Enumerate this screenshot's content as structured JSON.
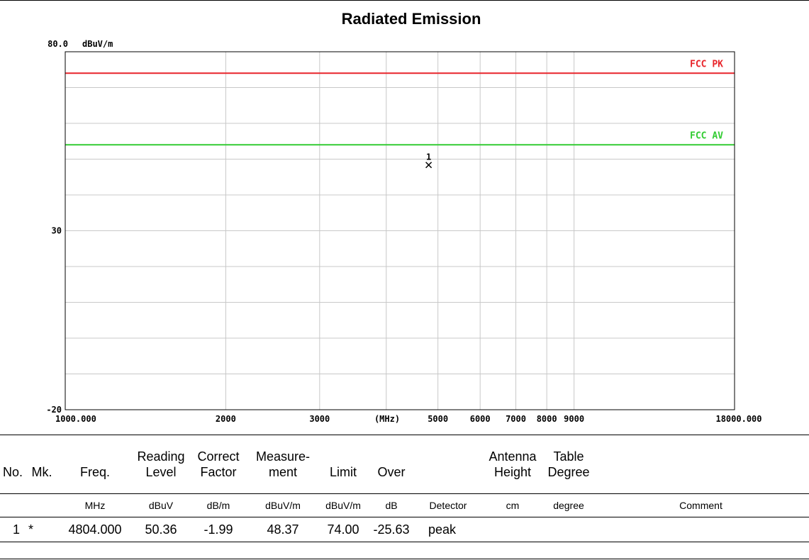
{
  "chart_data": {
    "type": "line",
    "title": "Radiated Emission",
    "ylabel": "dBuV/m",
    "xlabel": "(MHz)",
    "ylim": [
      -20,
      80
    ],
    "xlim": [
      1000,
      18000
    ],
    "xscale": "log",
    "y_ticks": [
      {
        "value": 80,
        "label": "80.0"
      },
      {
        "value": 30,
        "label": "30"
      },
      {
        "value": -20,
        "label": "-20"
      }
    ],
    "x_ticks": [
      {
        "value": 1000,
        "label": "1000.000"
      },
      {
        "value": 2000,
        "label": "2000"
      },
      {
        "value": 3000,
        "label": "3000"
      },
      {
        "value": 5000,
        "label": "5000"
      },
      {
        "value": 6000,
        "label": "6000"
      },
      {
        "value": 7000,
        "label": "7000"
      },
      {
        "value": 8000,
        "label": "8000"
      },
      {
        "value": 9000,
        "label": "9000"
      },
      {
        "value": 18000,
        "label": "18000.000"
      }
    ],
    "x_gridlines": [
      2000,
      3000,
      4000,
      5000,
      6000,
      7000,
      8000,
      9000
    ],
    "grid": true,
    "limits": [
      {
        "name": "FCC PK",
        "value": 74.0,
        "color": "#e8242a"
      },
      {
        "name": "FCC AV",
        "value": 54.0,
        "color": "#33cc33"
      }
    ],
    "markers": [
      {
        "label": "1",
        "x": 4804.0,
        "y": 48.37
      }
    ]
  },
  "table": {
    "headers": [
      {
        "key": "no",
        "label": "No."
      },
      {
        "key": "mk",
        "label": "Mk."
      },
      {
        "key": "freq",
        "label": "Freq."
      },
      {
        "key": "reading",
        "label": "Reading\nLevel"
      },
      {
        "key": "correct",
        "label": "Correct\nFactor"
      },
      {
        "key": "measurement",
        "label": "Measure-\nment"
      },
      {
        "key": "limit",
        "label": "Limit"
      },
      {
        "key": "over",
        "label": "Over"
      },
      {
        "key": "detector",
        "label": ""
      },
      {
        "key": "antenna",
        "label": "Antenna\nHeight"
      },
      {
        "key": "table_deg",
        "label": "Table\nDegree"
      },
      {
        "key": "comment",
        "label": ""
      }
    ],
    "units": [
      "",
      "",
      "MHz",
      "dBuV",
      "dB/m",
      "dBuV/m",
      "dBuV/m",
      "dB",
      "Detector",
      "cm",
      "degree",
      "Comment"
    ],
    "rows": [
      [
        "1",
        "*",
        "4804.000",
        "50.36",
        "-1.99",
        "48.37",
        "74.00",
        "-25.63",
        "peak",
        "",
        "",
        ""
      ]
    ]
  }
}
